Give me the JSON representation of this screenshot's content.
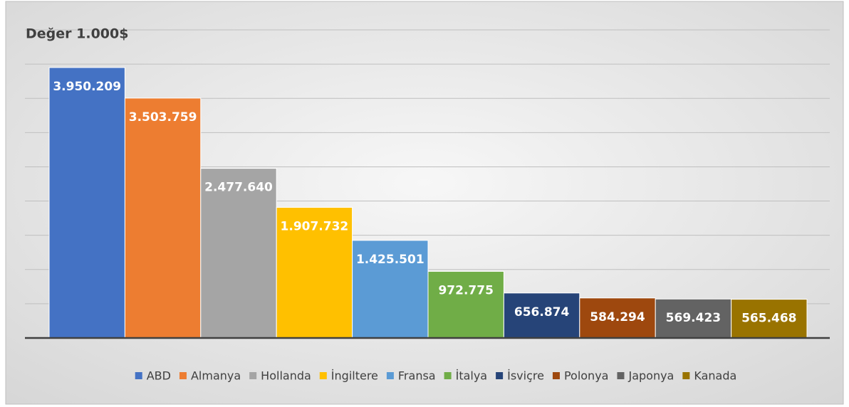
{
  "chart_data": {
    "type": "bar",
    "title": "Değer 1.000$",
    "categories": [
      "ABD",
      "Almanya",
      "Hollanda",
      "İngiltere",
      "Fransa",
      "İtalya",
      "İsviçre",
      "Polonya",
      "Japonya",
      "Kanada"
    ],
    "values": [
      3950209,
      3503759,
      2477640,
      1907732,
      1425501,
      972775,
      656874,
      584294,
      569423,
      565468
    ],
    "value_labels": [
      "3.950.209",
      "3.503.759",
      "2.477.640",
      "1.907.732",
      "1.425.501",
      "972.775",
      "656.874",
      "584.294",
      "569.423",
      "565.468"
    ],
    "colors": [
      "#4472c4",
      "#ed7d31",
      "#a5a5a5",
      "#ffc000",
      "#5b9bd5",
      "#70ad47",
      "#264478",
      "#9e480e",
      "#636363",
      "#997300"
    ],
    "ylim": [
      0,
      4500000
    ],
    "yticks": [
      0,
      500000,
      1000000,
      1500000,
      2000000,
      2500000,
      3000000,
      3500000,
      4000000,
      4500000
    ],
    "grid": true,
    "legend": "bottom"
  }
}
